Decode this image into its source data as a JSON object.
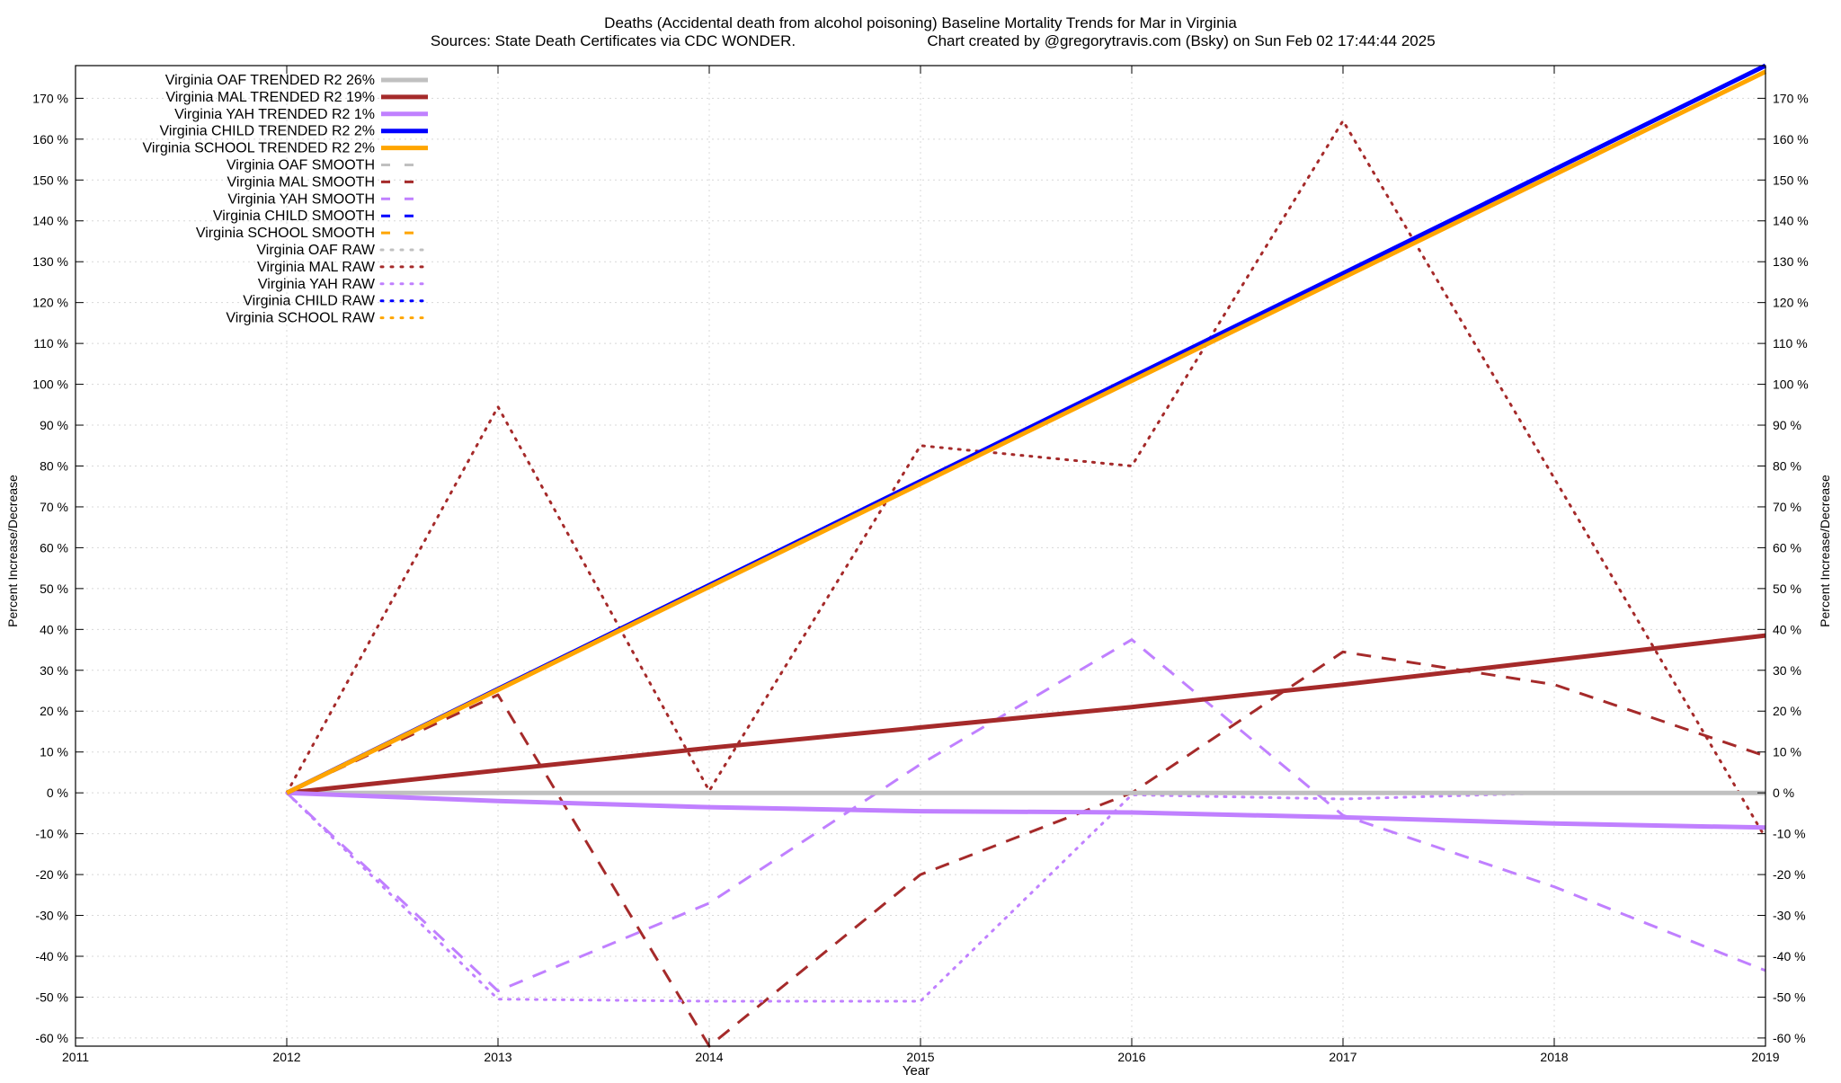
{
  "chart_data": {
    "type": "line",
    "title": "Deaths (Accidental death from alcohol poisoning)  Baseline Mortality Trends for Mar in Virginia",
    "subtitle_left": "Sources: State Death Certificates via CDC WONDER.",
    "subtitle_right": "Chart created by @gregorytravis.com (Bsky) on Sun Feb 02 17:44:44 2025",
    "xlabel": "Year",
    "ylabel": "Percent Increase/Decrease",
    "y2label": "Percent Increase/Decrease",
    "xlim": [
      2011,
      2019
    ],
    "ylim": [
      -62,
      178
    ],
    "x_ticks": [
      2011,
      2012,
      2013,
      2014,
      2015,
      2016,
      2017,
      2018,
      2019
    ],
    "y_ticks": [
      -60,
      -50,
      -40,
      -30,
      -20,
      -10,
      0,
      10,
      20,
      30,
      40,
      50,
      60,
      70,
      80,
      90,
      100,
      110,
      120,
      130,
      140,
      150,
      160,
      170
    ],
    "y_tick_suffix": " %",
    "grid": true,
    "legend_position": "top-left",
    "colors": {
      "oaf": "#c0c0c0",
      "mal": "#a52a2a",
      "yah": "#c080ff",
      "child": "#0000ff",
      "school": "#ffa500"
    },
    "series": [
      {
        "name": "Virginia OAF TRENDED R2",
        "r2": "26%",
        "color": "#c0c0c0",
        "style": "solid",
        "width": 5,
        "x": [
          2012,
          2019
        ],
        "values": [
          0,
          0
        ]
      },
      {
        "name": "Virginia MAL TRENDED R2",
        "r2": "19%",
        "color": "#a52a2a",
        "style": "solid",
        "width": 5,
        "x": [
          2012,
          2013,
          2014,
          2015,
          2016,
          2017,
          2018,
          2019
        ],
        "values": [
          0,
          5.5,
          11,
          16,
          21,
          26.5,
          32.5,
          38.5
        ]
      },
      {
        "name": "Virginia YAH TRENDED R2",
        "r2": "1%",
        "color": "#c080ff",
        "style": "solid",
        "width": 5,
        "x": [
          2012,
          2013,
          2014,
          2015,
          2016,
          2017,
          2018,
          2019
        ],
        "values": [
          0,
          -2,
          -3.5,
          -4.5,
          -4.8,
          -6,
          -7.5,
          -8.5
        ]
      },
      {
        "name": "Virginia CHILD TRENDED R2",
        "r2": "2%",
        "color": "#0000ff",
        "style": "solid",
        "width": 5,
        "x": [
          2012,
          2019
        ],
        "values": [
          0,
          178
        ]
      },
      {
        "name": "Virginia SCHOOL TRENDED R2",
        "r2": "2%",
        "color": "#ffa500",
        "style": "solid",
        "width": 5,
        "x": [
          2012,
          2019
        ],
        "values": [
          0,
          176.5
        ]
      },
      {
        "name": "Virginia OAF SMOOTH",
        "color": "#c0c0c0",
        "style": "dashed",
        "width": 3,
        "x": [
          2012,
          2019
        ],
        "values": [
          0,
          0
        ]
      },
      {
        "name": "Virginia MAL SMOOTH",
        "color": "#a52a2a",
        "style": "dashed",
        "width": 3,
        "x": [
          2012,
          2013,
          2014,
          2015,
          2016,
          2017,
          2018,
          2019
        ],
        "values": [
          0,
          24,
          -62,
          -20,
          0,
          34.5,
          26.5,
          9
        ]
      },
      {
        "name": "Virginia YAH SMOOTH",
        "color": "#c080ff",
        "style": "dashed",
        "width": 3,
        "x": [
          2012,
          2013,
          2014,
          2015,
          2016,
          2017,
          2018,
          2019
        ],
        "values": [
          0,
          -48.5,
          -27,
          7,
          37.5,
          -5.5,
          -23,
          -43.5
        ]
      },
      {
        "name": "Virginia CHILD SMOOTH",
        "color": "#0000ff",
        "style": "dashed",
        "width": 3,
        "x": [],
        "values": []
      },
      {
        "name": "Virginia SCHOOL SMOOTH",
        "color": "#ffa500",
        "style": "dashed",
        "width": 3,
        "x": [],
        "values": []
      },
      {
        "name": "Virginia OAF RAW",
        "color": "#c0c0c0",
        "style": "dotted",
        "width": 3,
        "x": [
          2012,
          2019
        ],
        "values": [
          0,
          0
        ]
      },
      {
        "name": "Virginia MAL RAW",
        "color": "#a52a2a",
        "style": "dotted",
        "width": 3,
        "x": [
          2012,
          2013,
          2014,
          2015,
          2016,
          2017,
          2018,
          2019
        ],
        "values": [
          0,
          94.5,
          0.5,
          85,
          80,
          164.5,
          77,
          -11
        ]
      },
      {
        "name": "Virginia YAH RAW",
        "color": "#c080ff",
        "style": "dotted",
        "width": 3,
        "x": [
          2012,
          2013,
          2014,
          2015,
          2016,
          2017,
          2018
        ],
        "values": [
          0,
          -50.5,
          -51,
          -51,
          -0.5,
          -1.5,
          0
        ]
      },
      {
        "name": "Virginia CHILD RAW",
        "color": "#0000ff",
        "style": "dotted",
        "width": 3,
        "x": [],
        "values": []
      },
      {
        "name": "Virginia SCHOOL RAW",
        "color": "#ffa500",
        "style": "dotted",
        "width": 3,
        "x": [],
        "values": []
      }
    ]
  }
}
